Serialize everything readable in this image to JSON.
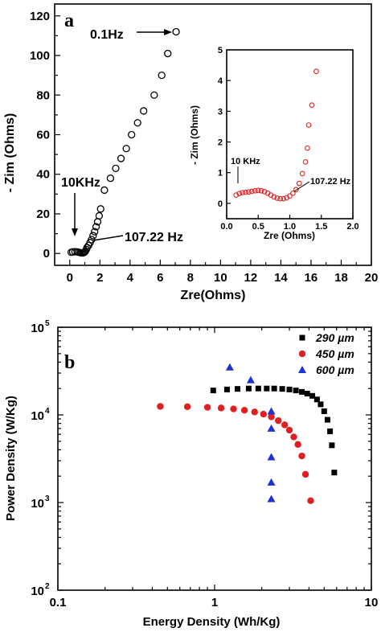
{
  "chart_data": [
    {
      "panel_label": "a",
      "type": "scatter",
      "xlabel": "Zre(Ohms)",
      "ylabel": "- Zim (Ohms)",
      "xlim": [
        -1,
        20
      ],
      "ylim": [
        -6,
        126
      ],
      "xticks": [
        "0",
        "2",
        "4",
        "6",
        "8",
        "10",
        "12",
        "14",
        "16",
        "18",
        "20"
      ],
      "yticks": [
        "0",
        "20",
        "40",
        "60",
        "80",
        "100",
        "120"
      ],
      "marker": "open-circle",
      "color": "#000000",
      "points": [
        [
          0.1,
          0.6
        ],
        [
          0.2,
          0.8
        ],
        [
          0.35,
          0.9
        ],
        [
          0.5,
          0.8
        ],
        [
          0.6,
          0.6
        ],
        [
          0.7,
          0.4
        ],
        [
          0.8,
          0.3
        ],
        [
          0.88,
          0.3
        ],
        [
          0.95,
          0.5
        ],
        [
          1.0,
          0.8
        ],
        [
          1.05,
          1.2
        ],
        [
          1.1,
          2.0
        ],
        [
          1.15,
          3.0
        ],
        [
          1.25,
          4.0
        ],
        [
          1.35,
          5.5
        ],
        [
          1.45,
          7.0
        ],
        [
          1.55,
          9.0
        ],
        [
          1.65,
          11.0
        ],
        [
          1.75,
          13.5
        ],
        [
          1.85,
          16.0
        ],
        [
          1.95,
          19.0
        ],
        [
          2.05,
          22.5
        ],
        [
          2.3,
          32.0
        ],
        [
          2.7,
          38.0
        ],
        [
          3.05,
          43.0
        ],
        [
          3.4,
          48.0
        ],
        [
          3.75,
          53.0
        ],
        [
          4.1,
          60.0
        ],
        [
          4.5,
          66.0
        ],
        [
          4.9,
          72.0
        ],
        [
          5.6,
          80.0
        ],
        [
          6.1,
          90.0
        ],
        [
          6.5,
          101.0
        ],
        [
          7.05,
          112.0
        ]
      ],
      "annotations": [
        {
          "text": "0.1Hz",
          "x": 7.05,
          "y": 112
        },
        {
          "text": "10KHz",
          "x": 0.15,
          "y": 1
        },
        {
          "text": "107.22 Hz",
          "x": 1.0,
          "y": 1
        }
      ],
      "inset": {
        "type": "scatter",
        "xlabel": "Zre (Ohms)",
        "ylabel": "- Zim (Ohms)",
        "xlim": [
          0,
          2
        ],
        "ylim": [
          -0.5,
          5
        ],
        "xticks": [
          "0.0",
          "0.5",
          "1.0",
          "1.5",
          "2.0"
        ],
        "yticks": [
          "0",
          "1",
          "2",
          "3",
          "4",
          "5"
        ],
        "marker": "open-circle",
        "color": "#e02020",
        "points": [
          [
            0.15,
            0.27
          ],
          [
            0.2,
            0.32
          ],
          [
            0.25,
            0.35
          ],
          [
            0.3,
            0.36
          ],
          [
            0.35,
            0.37
          ],
          [
            0.4,
            0.39
          ],
          [
            0.45,
            0.41
          ],
          [
            0.5,
            0.42
          ],
          [
            0.55,
            0.41
          ],
          [
            0.6,
            0.38
          ],
          [
            0.65,
            0.33
          ],
          [
            0.7,
            0.27
          ],
          [
            0.75,
            0.21
          ],
          [
            0.8,
            0.17
          ],
          [
            0.85,
            0.15
          ],
          [
            0.9,
            0.15
          ],
          [
            0.95,
            0.18
          ],
          [
            1.0,
            0.24
          ],
          [
            1.05,
            0.33
          ],
          [
            1.1,
            0.45
          ],
          [
            1.15,
            0.65
          ],
          [
            1.2,
            0.97
          ],
          [
            1.25,
            1.35
          ],
          [
            1.28,
            1.8
          ],
          [
            1.3,
            2.55
          ],
          [
            1.35,
            3.2
          ],
          [
            1.42,
            4.3
          ]
        ],
        "annotations": [
          {
            "text": "10 KHz",
            "x": 0.15,
            "y": 0.27
          },
          {
            "text": "107.22 Hz",
            "x": 1.0,
            "y": 0.24
          }
        ]
      }
    },
    {
      "panel_label": "b",
      "type": "scatter",
      "xscale": "log",
      "yscale": "log",
      "xlabel": "Energy Density (Wh/Kg)",
      "ylabel": "Power Density (W/Kg)",
      "xlim": [
        0.1,
        10
      ],
      "ylim": [
        100,
        100000
      ],
      "xticks": [
        "0.1",
        "1",
        "10"
      ],
      "yticks": [
        "10",
        "10",
        "10",
        "10"
      ],
      "ytick_exponents": [
        "2",
        "3",
        "4",
        "5"
      ],
      "legend_position": "top-right",
      "series": [
        {
          "name": "290 µm",
          "marker": "square",
          "color": "#000000",
          "points": [
            [
              0.98,
              19000
            ],
            [
              1.2,
              19500
            ],
            [
              1.4,
              19800
            ],
            [
              1.65,
              20000
            ],
            [
              1.9,
              20000
            ],
            [
              2.15,
              20000
            ],
            [
              2.4,
              20000
            ],
            [
              2.7,
              19800
            ],
            [
              3.0,
              19500
            ],
            [
              3.3,
              19000
            ],
            [
              3.6,
              18300
            ],
            [
              3.9,
              17500
            ],
            [
              4.2,
              16500
            ],
            [
              4.5,
              15000
            ],
            [
              4.75,
              13200
            ],
            [
              5.0,
              11000
            ],
            [
              5.25,
              8800
            ],
            [
              5.45,
              6500
            ],
            [
              5.6,
              4500
            ],
            [
              5.8,
              2200
            ]
          ]
        },
        {
          "name": "450 µm",
          "marker": "circle",
          "color": "#e02020",
          "points": [
            [
              0.45,
              12500
            ],
            [
              0.67,
              12400
            ],
            [
              0.9,
              12200
            ],
            [
              1.1,
              12000
            ],
            [
              1.32,
              11700
            ],
            [
              1.55,
              11300
            ],
            [
              1.8,
              10800
            ],
            [
              2.05,
              10200
            ],
            [
              2.3,
              9500
            ],
            [
              2.55,
              8600
            ],
            [
              2.8,
              7700
            ],
            [
              3.0,
              6700
            ],
            [
              3.2,
              5600
            ],
            [
              3.4,
              4600
            ],
            [
              3.6,
              3400
            ],
            [
              3.8,
              2100
            ],
            [
              4.1,
              1050
            ]
          ]
        },
        {
          "name": "600 µm",
          "marker": "triangle",
          "color": "#1e2fd8",
          "points": [
            [
              1.25,
              35000
            ],
            [
              1.7,
              25000
            ],
            [
              2.3,
              11000
            ],
            [
              2.3,
              7000
            ],
            [
              2.3,
              3300
            ],
            [
              2.3,
              1700
            ],
            [
              2.3,
              1100
            ]
          ]
        }
      ]
    }
  ]
}
